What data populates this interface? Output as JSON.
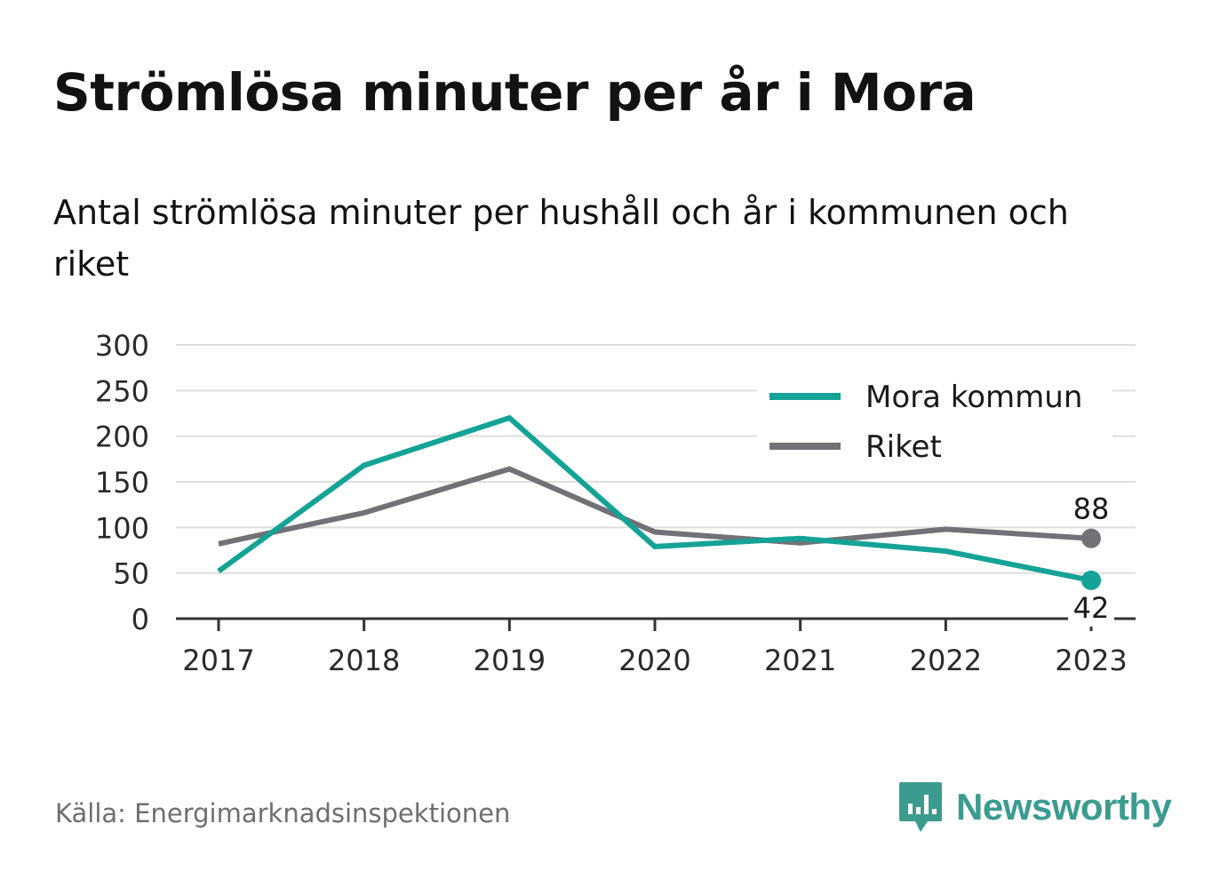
{
  "title": "Strömlösa minuter per år i Mora",
  "subtitle": "Antal strömlösa minuter per hushåll och år i kommunen och riket",
  "source": "Källa: Energimarknadsinspektionen",
  "brand": {
    "name": "Newsworthy",
    "icon": "newsworthy-logo-icon",
    "color": "#3b9b8f"
  },
  "chart_data": {
    "type": "line",
    "categories": [
      "2017",
      "2018",
      "2019",
      "2020",
      "2021",
      "2022",
      "2023"
    ],
    "yticks": [
      "0",
      "50",
      "100",
      "150",
      "200",
      "250",
      "300"
    ],
    "ylim": [
      0,
      300
    ],
    "grid": true,
    "legend": "top-right",
    "series": [
      {
        "name": "Mora kommun",
        "color": "#14a396",
        "values": [
          52,
          168,
          220,
          79,
          88,
          74,
          42
        ],
        "end_label": "42"
      },
      {
        "name": "Riket",
        "color": "#727176",
        "values": [
          82,
          116,
          164,
          95,
          83,
          98,
          88
        ],
        "end_label": "88"
      }
    ]
  }
}
